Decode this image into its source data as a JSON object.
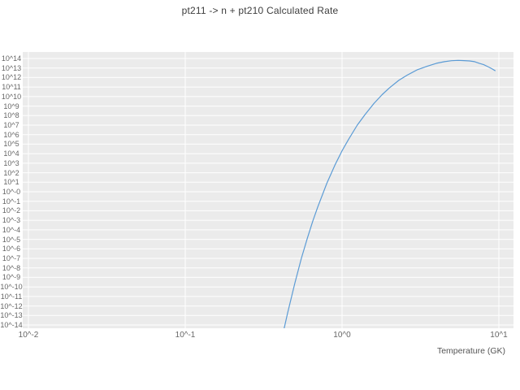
{
  "chart_data": {
    "type": "line",
    "title": "pt211 -> n + pt210 Calculated Rate",
    "xlabel": "Temperature (GK)",
    "ylabel": "",
    "x_scale": "log10",
    "y_scale": "log10",
    "xlim_log10": [
      -2.13,
      1.09
    ],
    "ylim_log10": [
      -14.35,
      14.7
    ],
    "grid": true,
    "legend": "none",
    "plot_background": "#ebebeb",
    "grid_color": "#ffffff",
    "x_ticks": [
      {
        "log10": -2,
        "label": "10^-2"
      },
      {
        "log10": -1,
        "label": "10^-1"
      },
      {
        "log10": 0,
        "label": "10^0"
      },
      {
        "log10": 1,
        "label": "10^1"
      }
    ],
    "y_ticks": [
      {
        "log10": 14,
        "label": "10^14"
      },
      {
        "log10": 13,
        "label": "10^13"
      },
      {
        "log10": 12,
        "label": "10^12"
      },
      {
        "log10": 11,
        "label": "10^11"
      },
      {
        "log10": 10,
        "label": "10^10"
      },
      {
        "log10": 9,
        "label": "10^9"
      },
      {
        "log10": 8,
        "label": "10^8"
      },
      {
        "log10": 7,
        "label": "10^7"
      },
      {
        "log10": 6,
        "label": "10^6"
      },
      {
        "log10": 5,
        "label": "10^5"
      },
      {
        "log10": 4,
        "label": "10^4"
      },
      {
        "log10": 3,
        "label": "10^3"
      },
      {
        "log10": 2,
        "label": "10^2"
      },
      {
        "log10": 1,
        "label": "10^1"
      },
      {
        "log10": 0,
        "label": "10^-0"
      },
      {
        "log10": -1,
        "label": "10^-1"
      },
      {
        "log10": -2,
        "label": "10^-2"
      },
      {
        "log10": -3,
        "label": "10^-3"
      },
      {
        "log10": -4,
        "label": "10^-4"
      },
      {
        "log10": -5,
        "label": "10^-5"
      },
      {
        "log10": -6,
        "label": "10^-6"
      },
      {
        "log10": -7,
        "label": "10^-7"
      },
      {
        "log10": -8,
        "label": "10^-8"
      },
      {
        "log10": -9,
        "label": "10^-9"
      },
      {
        "log10": -10,
        "label": "10^-10"
      },
      {
        "log10": -11,
        "label": "10^-11"
      },
      {
        "log10": -12,
        "label": "10^-12"
      },
      {
        "log10": -13,
        "label": "10^-13"
      },
      {
        "log10": -14,
        "label": "10^-14"
      }
    ],
    "series": [
      {
        "name": "calculated rate",
        "color": "#5b9bd5",
        "points_format": "[temperature_GK, log10_rate]",
        "points": [
          [
            0.42,
            -14.9
          ],
          [
            0.45,
            -12.7
          ],
          [
            0.5,
            -9.6
          ],
          [
            0.55,
            -7.0
          ],
          [
            0.6,
            -4.9
          ],
          [
            0.65,
            -3.1
          ],
          [
            0.7,
            -1.6
          ],
          [
            0.8,
            0.9
          ],
          [
            0.9,
            2.8
          ],
          [
            1.0,
            4.3
          ],
          [
            1.1,
            5.5
          ],
          [
            1.25,
            7.0
          ],
          [
            1.4,
            8.1
          ],
          [
            1.6,
            9.3
          ],
          [
            1.8,
            10.2
          ],
          [
            2.0,
            10.9
          ],
          [
            2.3,
            11.7
          ],
          [
            2.6,
            12.25
          ],
          [
            3.0,
            12.8
          ],
          [
            3.5,
            13.2
          ],
          [
            4.0,
            13.5
          ],
          [
            4.5,
            13.67
          ],
          [
            5.0,
            13.77
          ],
          [
            5.5,
            13.8
          ],
          [
            6.0,
            13.78
          ],
          [
            6.5,
            13.74
          ],
          [
            7.0,
            13.67
          ],
          [
            7.5,
            13.5
          ],
          [
            8.0,
            13.35
          ],
          [
            8.5,
            13.15
          ],
          [
            9.0,
            12.93
          ],
          [
            9.5,
            12.7
          ]
        ]
      }
    ]
  }
}
